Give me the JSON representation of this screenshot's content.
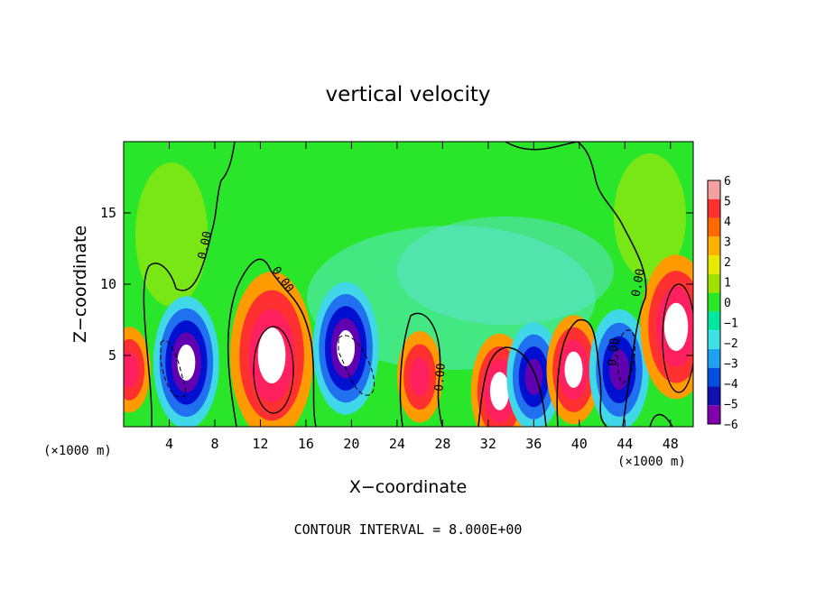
{
  "chart_data": {
    "type": "heatmap",
    "title": "vertical velocity",
    "xlabel": "X−coordinate",
    "ylabel": "Z−coordinate",
    "x_unit_left": "(×1000 m)",
    "x_unit_right": "(×1000 m)",
    "xlim": [
      0,
      50
    ],
    "ylim": [
      0,
      20
    ],
    "x_ticks": [
      4,
      8,
      12,
      16,
      20,
      24,
      28,
      32,
      36,
      40,
      44,
      48
    ],
    "y_ticks": [
      5,
      10,
      15
    ],
    "note": "CONTOUR INTERVAL = 8.000E+00",
    "colorbar": {
      "ticks": [
        "6",
        "5",
        "4",
        "3",
        "2",
        "1",
        "0",
        "−1",
        "−2",
        "−3",
        "−4",
        "−5",
        "−6"
      ],
      "colors": [
        "#f4a0a0",
        "#ff3030",
        "#ff6a00",
        "#ffb000",
        "#e8e800",
        "#a0e000",
        "#28e828",
        "#00e8a0",
        "#40e0e8",
        "#20a0f0",
        "#0050e0",
        "#1010b0",
        "#8000b0"
      ]
    },
    "contour_labels": [
      "0.00",
      "0.00",
      "0.00",
      "0.00",
      "0.00"
    ],
    "cells": [
      {
        "x": 0.5,
        "z": 4,
        "w": 3
      },
      {
        "x": 5.5,
        "z": 4.5,
        "w": -7
      },
      {
        "x": 13,
        "z": 5,
        "w": 10
      },
      {
        "x": 19.5,
        "z": 5.5,
        "w": -7
      },
      {
        "x": 26,
        "z": 3.5,
        "w": 3.5
      },
      {
        "x": 33,
        "z": 2.5,
        "w": 5.5
      },
      {
        "x": 36,
        "z": 3.5,
        "w": -5
      },
      {
        "x": 39.5,
        "z": 4,
        "w": 5
      },
      {
        "x": 43.5,
        "z": 4,
        "w": -6
      },
      {
        "x": 48.5,
        "z": 7,
        "w": 8
      }
    ]
  }
}
